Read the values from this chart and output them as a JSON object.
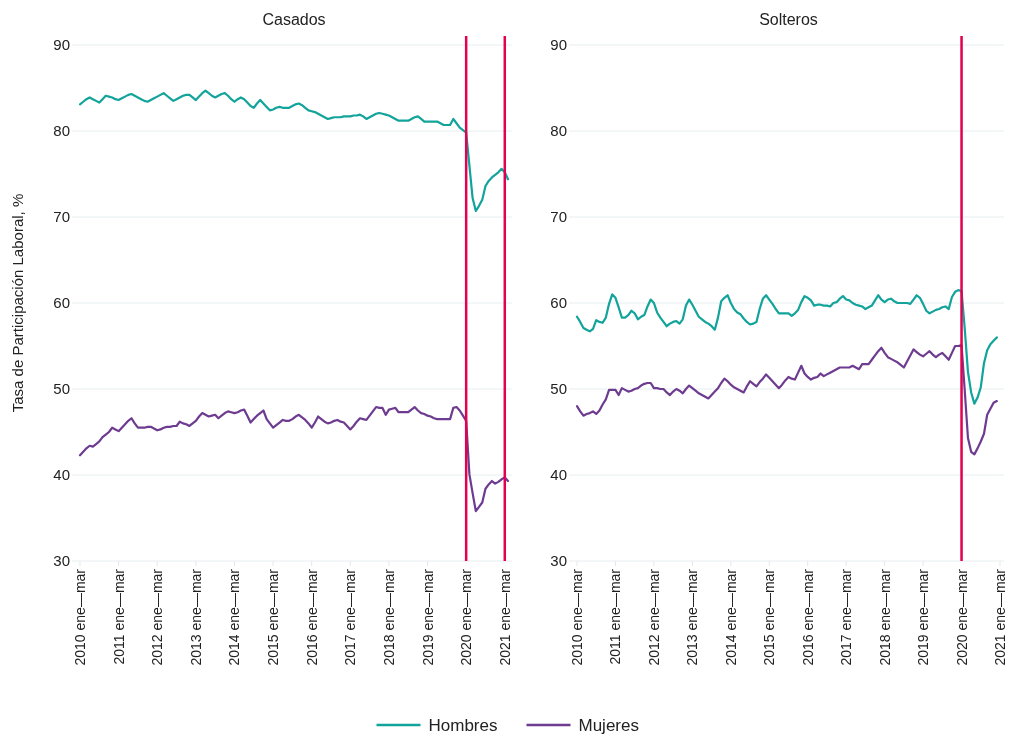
{
  "chart_data": [
    {
      "type": "line",
      "title": "Casados",
      "ylabel": "Tasa de Participación Laboral, %",
      "ylim": [
        30,
        90
      ],
      "yticks": [
        30,
        40,
        50,
        60,
        70,
        80,
        90
      ],
      "grid": "y",
      "legend": "bottom",
      "categories": [
        "2010 ene—mar",
        null,
        null,
        null,
        null,
        null,
        null,
        null,
        null,
        null,
        null,
        null,
        "2011 ene—mar",
        null,
        null,
        null,
        null,
        null,
        null,
        null,
        null,
        null,
        null,
        null,
        "2012 ene—mar",
        null,
        null,
        null,
        null,
        null,
        null,
        null,
        null,
        null,
        null,
        null,
        "2013 ene—mar",
        null,
        null,
        null,
        null,
        null,
        null,
        null,
        null,
        null,
        null,
        null,
        "2014 ene—mar",
        null,
        null,
        null,
        null,
        null,
        null,
        null,
        null,
        null,
        null,
        null,
        "2015 ene—mar",
        null,
        null,
        null,
        null,
        null,
        null,
        null,
        null,
        null,
        null,
        null,
        "2016 ene—mar",
        null,
        null,
        null,
        null,
        null,
        null,
        null,
        null,
        null,
        null,
        null,
        "2017 ene—mar",
        null,
        null,
        null,
        null,
        null,
        null,
        null,
        null,
        null,
        null,
        null,
        "2018 ene—mar",
        null,
        null,
        null,
        null,
        null,
        null,
        null,
        null,
        null,
        null,
        null,
        "2019 ene—mar",
        null,
        null,
        null,
        null,
        null,
        null,
        null,
        null,
        null,
        null,
        null,
        "2020 ene—mar",
        null,
        null,
        null,
        null,
        null,
        null,
        null,
        null,
        null,
        null,
        null,
        "2021 ene—mar",
        null
      ],
      "ref_lines": [
        {
          "axis": "x",
          "value": "2020 ene—mar",
          "color": "#e3004f"
        },
        {
          "axis": "x",
          "value": "2021 ene—mar",
          "color": "#e3004f"
        }
      ],
      "series": [
        {
          "name": "Hombres",
          "color": "#12a39b",
          "values": [
            83.1,
            83.4,
            83.7,
            83.9,
            83.7,
            83.5,
            83.3,
            83.7,
            84.1,
            84.0,
            83.9,
            83.7,
            83.6,
            83.8,
            84.0,
            84.2,
            84.3,
            84.1,
            83.9,
            83.7,
            83.5,
            83.4,
            83.6,
            83.8,
            84.0,
            84.2,
            84.4,
            84.1,
            83.8,
            83.5,
            83.7,
            83.9,
            84.1,
            84.2,
            84.2,
            83.9,
            83.6,
            84.0,
            84.4,
            84.7,
            84.4,
            84.1,
            83.9,
            84.1,
            84.3,
            84.4,
            84.1,
            83.7,
            83.4,
            83.7,
            83.9,
            83.7,
            83.3,
            82.9,
            82.7,
            83.2,
            83.6,
            83.2,
            82.8,
            82.4,
            82.5,
            82.7,
            82.8,
            82.7,
            82.7,
            82.7,
            82.9,
            83.1,
            83.2,
            83.0,
            82.7,
            82.4,
            82.3,
            82.2,
            82.0,
            81.8,
            81.6,
            81.4,
            81.5,
            81.6,
            81.6,
            81.6,
            81.7,
            81.7,
            81.7,
            81.8,
            81.8,
            81.9,
            81.7,
            81.4,
            81.6,
            81.8,
            82.0,
            82.1,
            82.0,
            81.9,
            81.8,
            81.6,
            81.4,
            81.2,
            81.2,
            81.2,
            81.2,
            81.4,
            81.6,
            81.7,
            81.4,
            81.1,
            81.1,
            81.1,
            81.1,
            81.1,
            80.9,
            80.7,
            80.7,
            80.7,
            81.4,
            80.9,
            80.4,
            80.1,
            79.8,
            76.0,
            72.2,
            70.7,
            71.3,
            72.0,
            73.6,
            74.2,
            74.6,
            74.9,
            75.2,
            75.6,
            75.2,
            74.4
          ]
        },
        {
          "name": "Mujeres",
          "color": "#6d3b90",
          "values": [
            42.3,
            42.7,
            43.1,
            43.4,
            43.3,
            43.6,
            43.9,
            44.4,
            44.7,
            45.0,
            45.5,
            45.3,
            45.1,
            45.5,
            45.9,
            46.3,
            46.6,
            46.0,
            45.5,
            45.5,
            45.5,
            45.6,
            45.6,
            45.4,
            45.2,
            45.3,
            45.5,
            45.6,
            45.6,
            45.7,
            45.7,
            46.2,
            46.0,
            45.9,
            45.7,
            46.0,
            46.3,
            46.8,
            47.2,
            47.0,
            46.8,
            46.9,
            47.0,
            46.6,
            46.9,
            47.2,
            47.4,
            47.3,
            47.2,
            47.3,
            47.5,
            47.6,
            46.9,
            46.1,
            46.5,
            46.9,
            47.2,
            47.5,
            46.5,
            46.0,
            45.5,
            45.8,
            46.1,
            46.4,
            46.3,
            46.3,
            46.5,
            46.8,
            47.0,
            46.7,
            46.4,
            46.0,
            45.5,
            46.1,
            46.8,
            46.5,
            46.2,
            46.0,
            46.1,
            46.3,
            46.4,
            46.2,
            46.1,
            45.7,
            45.3,
            45.7,
            46.2,
            46.6,
            46.5,
            46.4,
            46.9,
            47.4,
            47.9,
            47.8,
            47.8,
            47.0,
            47.6,
            47.7,
            47.8,
            47.3,
            47.3,
            47.3,
            47.3,
            47.6,
            47.9,
            47.5,
            47.2,
            47.1,
            46.9,
            46.8,
            46.6,
            46.5,
            46.5,
            46.5,
            46.5,
            46.5,
            47.8,
            47.9,
            47.5,
            46.9,
            46.3,
            40.1,
            37.9,
            35.8,
            36.3,
            36.8,
            38.4,
            38.9,
            39.3,
            39.0,
            39.2,
            39.5,
            39.7,
            39.3
          ]
        }
      ]
    },
    {
      "type": "line",
      "title": "Solteros",
      "ylim": [
        30,
        90
      ],
      "yticks": [
        30,
        40,
        50,
        60,
        70,
        80,
        90
      ],
      "grid": "y",
      "legend": "bottom",
      "categories": [
        "2010 ene—mar",
        null,
        null,
        null,
        null,
        null,
        null,
        null,
        null,
        null,
        null,
        null,
        "2011 ene—mar",
        null,
        null,
        null,
        null,
        null,
        null,
        null,
        null,
        null,
        null,
        null,
        "2012 ene—mar",
        null,
        null,
        null,
        null,
        null,
        null,
        null,
        null,
        null,
        null,
        null,
        "2013 ene—mar",
        null,
        null,
        null,
        null,
        null,
        null,
        null,
        null,
        null,
        null,
        null,
        "2014 ene—mar",
        null,
        null,
        null,
        null,
        null,
        null,
        null,
        null,
        null,
        null,
        null,
        "2015 ene—mar",
        null,
        null,
        null,
        null,
        null,
        null,
        null,
        null,
        null,
        null,
        null,
        "2016 ene—mar",
        null,
        null,
        null,
        null,
        null,
        null,
        null,
        null,
        null,
        null,
        null,
        "2017 ene—mar",
        null,
        null,
        null,
        null,
        null,
        null,
        null,
        null,
        null,
        null,
        null,
        "2018 ene—mar",
        null,
        null,
        null,
        null,
        null,
        null,
        null,
        null,
        null,
        null,
        null,
        "2019 ene—mar",
        null,
        null,
        null,
        null,
        null,
        null,
        null,
        null,
        null,
        null,
        null,
        "2020 ene—mar",
        null,
        null,
        null,
        null,
        null,
        null,
        null,
        null,
        null,
        null,
        null,
        "2021 ene—mar"
      ],
      "ref_lines": [
        {
          "axis": "x",
          "value": "2020 ene—mar",
          "color": "#e3004f"
        }
      ],
      "series": [
        {
          "name": "Hombres",
          "color": "#12a39b",
          "values": [
            58.4,
            57.8,
            57.1,
            56.9,
            56.7,
            57.0,
            58.0,
            57.8,
            57.7,
            58.3,
            59.9,
            61.0,
            60.6,
            59.5,
            58.3,
            58.3,
            58.6,
            59.1,
            58.8,
            58.1,
            58.4,
            58.6,
            59.6,
            60.4,
            60.0,
            58.9,
            58.3,
            57.8,
            57.3,
            57.6,
            57.8,
            57.9,
            57.6,
            58.1,
            59.7,
            60.4,
            59.8,
            59.1,
            58.4,
            58.1,
            57.8,
            57.6,
            57.3,
            56.9,
            58.3,
            60.2,
            60.6,
            60.9,
            60.0,
            59.3,
            58.9,
            58.7,
            58.2,
            57.8,
            57.5,
            57.6,
            57.8,
            59.3,
            60.5,
            60.9,
            60.4,
            59.9,
            59.3,
            58.8,
            58.8,
            58.8,
            58.8,
            58.5,
            58.8,
            59.2,
            60.1,
            60.8,
            60.6,
            60.3,
            59.7,
            59.8,
            59.8,
            59.7,
            59.7,
            59.6,
            60.0,
            60.1,
            60.5,
            60.8,
            60.4,
            60.3,
            60.0,
            59.8,
            59.7,
            59.6,
            59.3,
            59.5,
            59.7,
            60.3,
            60.9,
            60.4,
            60.1,
            60.4,
            60.5,
            60.2,
            60.0,
            60.0,
            60.0,
            60.0,
            59.9,
            60.4,
            60.9,
            60.6,
            59.9,
            59.1,
            58.8,
            59.0,
            59.2,
            59.3,
            59.5,
            59.6,
            59.3,
            60.7,
            61.3,
            61.5,
            61.4,
            57.0,
            52.0,
            49.6,
            48.3,
            49.0,
            50.2,
            53.0,
            54.5,
            55.2,
            55.6,
            56.0,
            null
          ]
        },
        {
          "name": "Mujeres",
          "color": "#6d3b90",
          "values": [
            48.0,
            47.4,
            46.9,
            47.1,
            47.2,
            47.4,
            47.1,
            47.5,
            48.2,
            48.8,
            49.9,
            49.9,
            49.9,
            49.3,
            50.1,
            49.9,
            49.7,
            49.8,
            50.0,
            50.1,
            50.4,
            50.6,
            50.7,
            50.7,
            50.1,
            50.1,
            50.0,
            50.0,
            49.6,
            49.3,
            49.7,
            50.0,
            49.8,
            49.5,
            50.0,
            50.4,
            50.1,
            49.8,
            49.5,
            49.3,
            49.1,
            48.9,
            49.3,
            49.7,
            50.1,
            50.7,
            51.2,
            50.9,
            50.5,
            50.2,
            50.0,
            49.8,
            49.6,
            50.3,
            50.9,
            50.6,
            50.3,
            50.8,
            51.2,
            51.7,
            51.3,
            50.9,
            50.5,
            50.1,
            50.5,
            51.0,
            51.4,
            51.2,
            51.1,
            51.9,
            52.7,
            51.8,
            51.4,
            51.1,
            51.3,
            51.4,
            51.8,
            51.5,
            51.7,
            51.9,
            52.1,
            52.3,
            52.5,
            52.5,
            52.5,
            52.5,
            52.7,
            52.5,
            52.3,
            52.9,
            52.9,
            52.9,
            53.4,
            53.9,
            54.4,
            54.8,
            54.2,
            53.7,
            53.5,
            53.3,
            53.1,
            52.8,
            52.5,
            53.2,
            53.9,
            54.6,
            54.3,
            54.0,
            53.8,
            54.1,
            54.4,
            54.0,
            53.7,
            54.0,
            54.2,
            53.8,
            53.4,
            54.2,
            55.0,
            55.0,
            55.1,
            49.8,
            44.3,
            42.7,
            42.4,
            43.1,
            43.9,
            44.8,
            47.0,
            47.7,
            48.4,
            48.6,
            null
          ]
        }
      ]
    }
  ]
}
